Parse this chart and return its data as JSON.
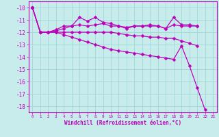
{
  "xlabel": "Windchill (Refroidissement éolien,°C)",
  "bg_color": "#c8ecec",
  "grid_color": "#a0d8d8",
  "line_color": "#bb00bb",
  "xlim": [
    -0.5,
    23.5
  ],
  "ylim": [
    -18.5,
    -9.5
  ],
  "yticks": [
    -10,
    -11,
    -12,
    -13,
    -14,
    -15,
    -16,
    -17,
    -18
  ],
  "xticks": [
    0,
    1,
    2,
    3,
    4,
    5,
    6,
    7,
    8,
    9,
    10,
    11,
    12,
    13,
    14,
    15,
    16,
    17,
    18,
    19,
    20,
    21,
    22,
    23
  ],
  "marker": "D",
  "markersize": 2.5,
  "linewidth": 0.9,
  "series": {
    "deep": {
      "x": [
        0,
        1,
        2,
        3,
        4,
        5,
        6,
        7,
        8,
        9,
        10,
        11,
        12,
        13,
        14,
        15,
        16,
        17,
        18,
        19,
        20,
        21,
        22
      ],
      "y": [
        -10,
        -12,
        -12,
        -12,
        -12.2,
        -12.4,
        -12.6,
        -12.8,
        -13.0,
        -13.2,
        -13.4,
        -13.5,
        -13.6,
        -13.7,
        -13.8,
        -13.9,
        -14.0,
        -14.1,
        -14.2,
        -13.1,
        -14.7,
        -16.5,
        -18.3
      ]
    },
    "mid_low": {
      "x": [
        0,
        1,
        2,
        3,
        4,
        5,
        6,
        7,
        8,
        9,
        10,
        11,
        12,
        13,
        14,
        15,
        16,
        17,
        18,
        19,
        20,
        21
      ],
      "y": [
        -10,
        -12,
        -12,
        -12,
        -12,
        -12,
        -12,
        -12,
        -12,
        -12,
        -12,
        -12.1,
        -12.2,
        -12.3,
        -12.3,
        -12.4,
        -12.4,
        -12.5,
        -12.5,
        -12.7,
        -12.9,
        -13.1
      ]
    },
    "upper1": {
      "x": [
        0,
        1,
        2,
        3,
        4,
        5,
        6,
        7,
        8,
        9,
        10,
        11,
        12,
        13,
        14,
        15,
        16,
        17,
        18,
        19,
        20,
        21
      ],
      "y": [
        -10,
        -12,
        -12,
        -11.9,
        -11.7,
        -11.5,
        -11.4,
        -11.5,
        -11.4,
        -11.3,
        -11.5,
        -11.5,
        -11.7,
        -11.5,
        -11.5,
        -11.5,
        -11.5,
        -11.7,
        -11.4,
        -11.5,
        -11.5,
        -11.5
      ]
    },
    "top": {
      "x": [
        0,
        1,
        2,
        3,
        4,
        5,
        6,
        7,
        8,
        9,
        10,
        11,
        12,
        13,
        14,
        15,
        16,
        17,
        18,
        19,
        20,
        21
      ],
      "y": [
        -10,
        -12,
        -12,
        -11.8,
        -11.5,
        -11.5,
        -10.8,
        -11.1,
        -10.8,
        -11.2,
        -11.3,
        -11.5,
        -11.6,
        -11.5,
        -11.5,
        -11.4,
        -11.5,
        -11.7,
        -10.8,
        -11.4,
        -11.4,
        -11.5
      ]
    }
  }
}
